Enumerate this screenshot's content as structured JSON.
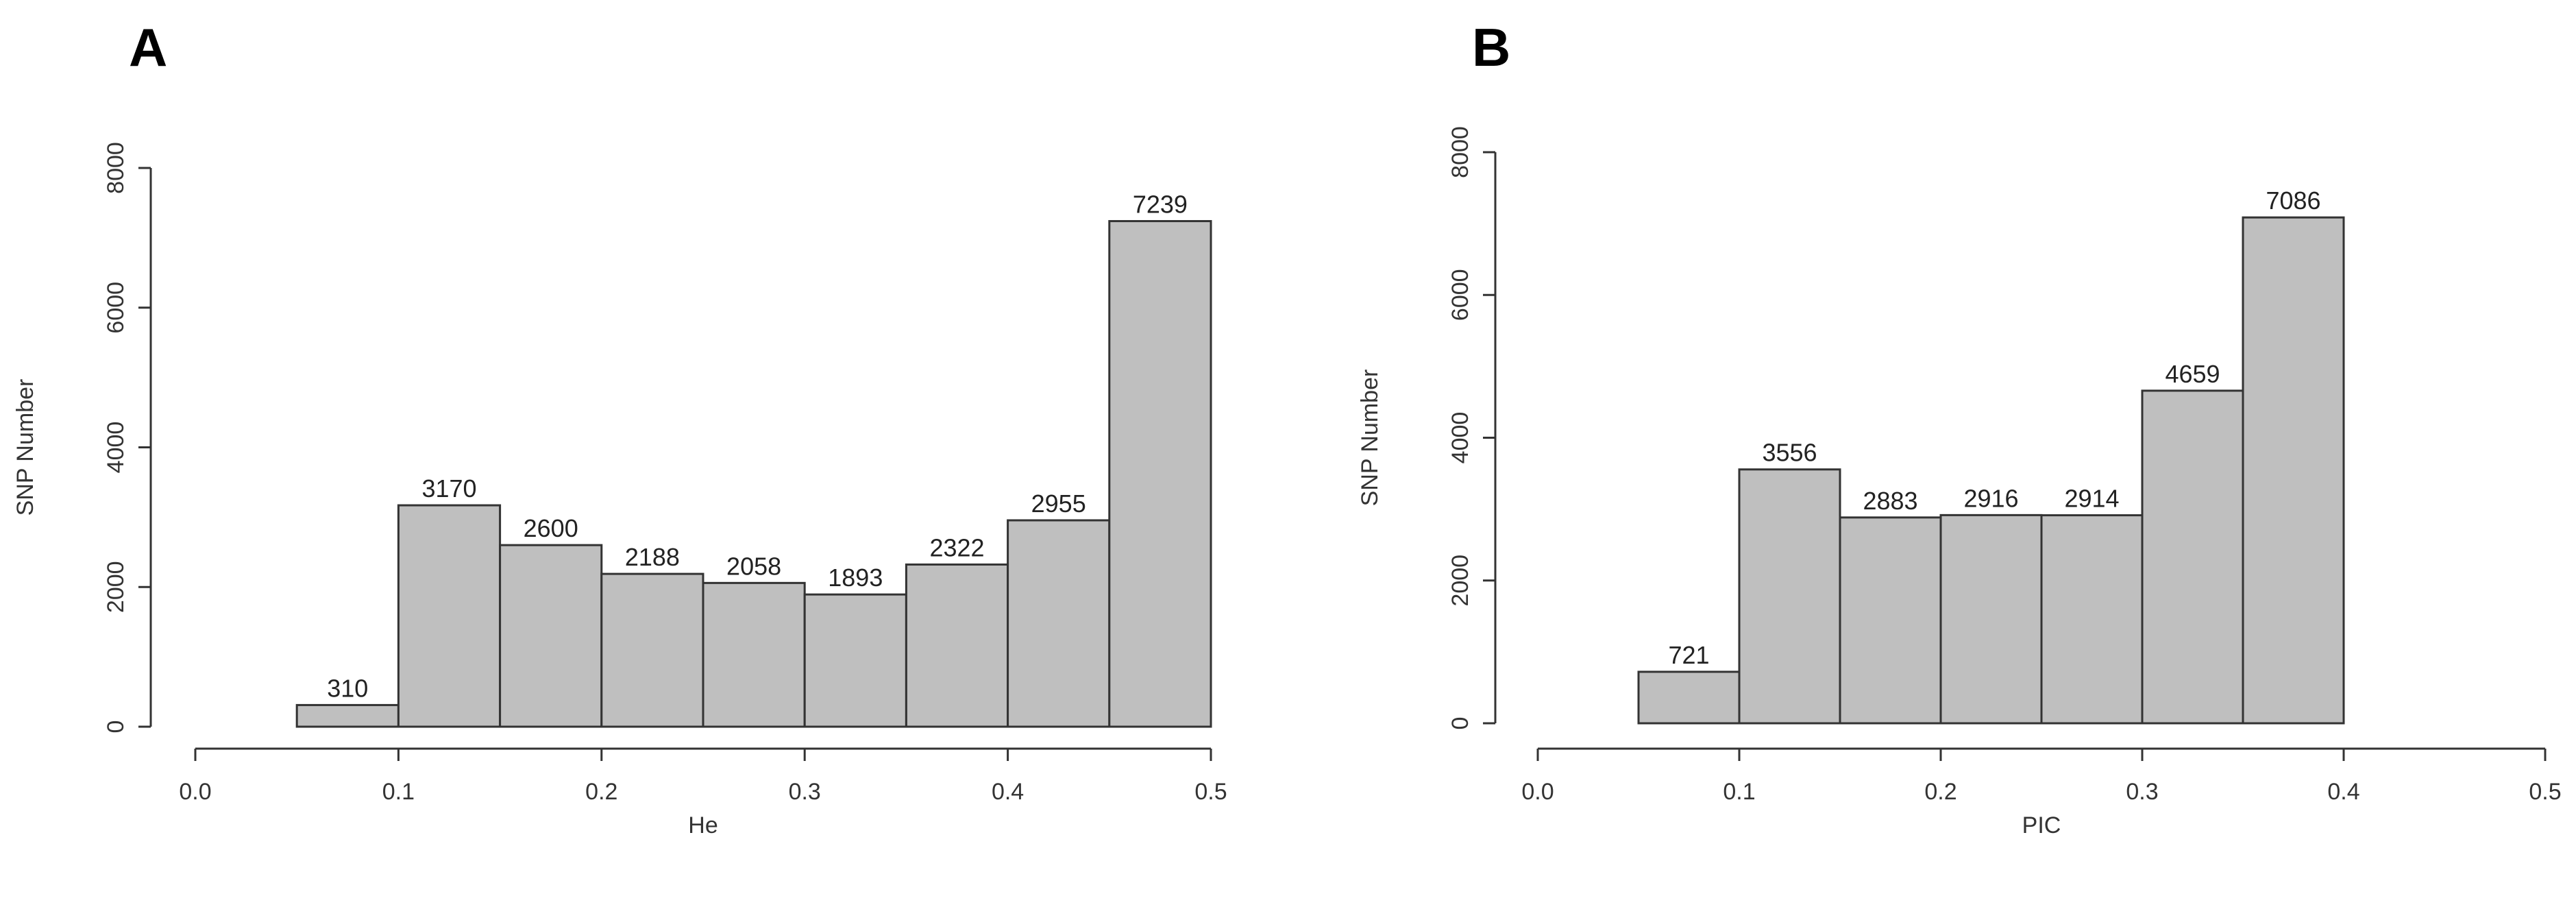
{
  "figure": {
    "panels": [
      {
        "letter": "A"
      },
      {
        "letter": "B"
      }
    ]
  },
  "chart_data": [
    {
      "type": "bar",
      "histogram": true,
      "bins": [
        [
          0.05,
          0.1
        ],
        [
          0.1,
          0.15
        ],
        [
          0.15,
          0.2
        ],
        [
          0.2,
          0.25
        ],
        [
          0.25,
          0.3
        ],
        [
          0.3,
          0.35
        ],
        [
          0.35,
          0.4
        ],
        [
          0.4,
          0.45
        ],
        [
          0.45,
          0.5
        ]
      ],
      "values": [
        310,
        3170,
        2600,
        2188,
        2058,
        1893,
        2322,
        2955,
        7239
      ],
      "data_labels": [
        "310",
        "3170",
        "2600",
        "2188",
        "2058",
        "1893",
        "2322",
        "2955",
        "7239"
      ],
      "xlabel": "He",
      "ylabel": "SNP Number",
      "xlim": [
        0,
        0.5
      ],
      "ylim": [
        0,
        8000
      ],
      "xticks": [
        0.0,
        0.1,
        0.2,
        0.3,
        0.4,
        0.5
      ],
      "xtick_labels": [
        "0.0",
        "0.1",
        "0.2",
        "0.3",
        "0.4",
        "0.5"
      ],
      "yticks": [
        0,
        2000,
        4000,
        6000,
        8000
      ],
      "ytick_labels": [
        "0",
        "2000",
        "4000",
        "6000",
        "8000"
      ],
      "grid": false,
      "bar_color": "#bfbfbf"
    },
    {
      "type": "bar",
      "histogram": true,
      "bins": [
        [
          0.05,
          0.1
        ],
        [
          0.1,
          0.15
        ],
        [
          0.15,
          0.2
        ],
        [
          0.2,
          0.25
        ],
        [
          0.25,
          0.3
        ],
        [
          0.3,
          0.35
        ],
        [
          0.35,
          0.4
        ]
      ],
      "values": [
        721,
        3556,
        2883,
        2916,
        2914,
        4659,
        7086
      ],
      "data_labels": [
        "721",
        "3556",
        "2883",
        "2916",
        "2914",
        "4659",
        "7086"
      ],
      "xlabel": "PIC",
      "ylabel": "SNP Number",
      "xlim": [
        0,
        0.5
      ],
      "ylim": [
        0,
        8000
      ],
      "xticks": [
        0.0,
        0.1,
        0.2,
        0.3,
        0.4,
        0.5
      ],
      "xtick_labels": [
        "0.0",
        "0.1",
        "0.2",
        "0.3",
        "0.4",
        "0.5"
      ],
      "yticks": [
        0,
        2000,
        4000,
        6000,
        8000
      ],
      "ytick_labels": [
        "0",
        "2000",
        "4000",
        "6000",
        "8000"
      ],
      "grid": false,
      "bar_color": "#bfbfbf"
    }
  ]
}
